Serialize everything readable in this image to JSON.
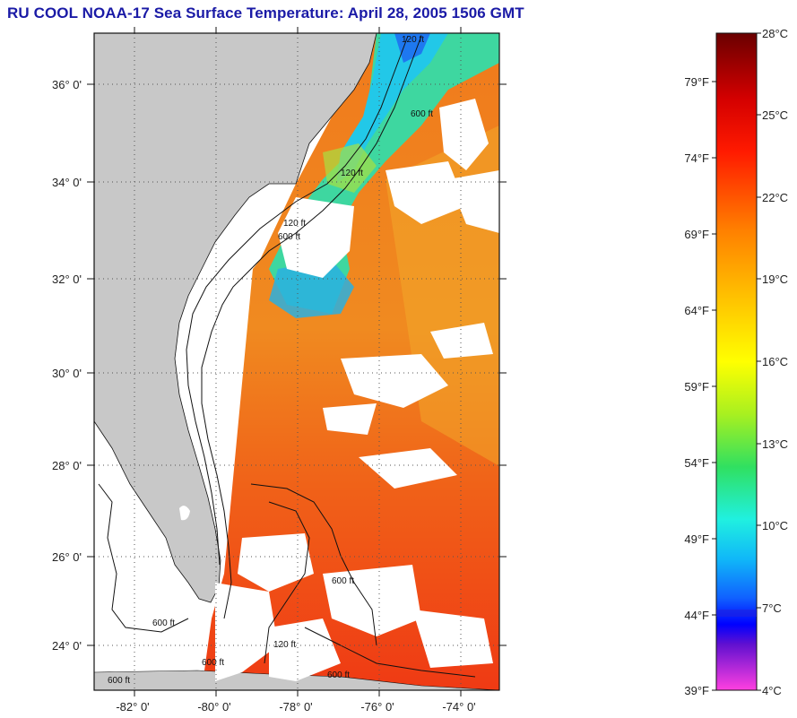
{
  "title": "RU COOL  NOAA-17  Sea Surface Temperature:  April 28, 2005 1506 GMT",
  "map": {
    "lat_labels": [
      "36° 0'",
      "34° 0'",
      "32° 0'",
      "30° 0'",
      "28° 0'",
      "26° 0'",
      "24° 0'"
    ],
    "lon_labels": [
      "-82° 0'",
      "-80° 0'",
      "-78° 0'",
      "-76° 0'",
      "-74° 0'"
    ],
    "contour_labels": [
      "120 ft",
      "600 ft",
      "120 ft",
      "600 ft",
      "120 ft",
      "600 ft",
      "600 ft",
      "120 ft",
      "600 ft",
      "600 ft",
      "600 ft"
    ]
  },
  "colorbar": {
    "celsius": [
      "28°C",
      "25°C",
      "22°C",
      "19°C",
      "16°C",
      "13°C",
      "10°C",
      "7°C",
      "4°C"
    ],
    "fahrenheit": [
      "79°F",
      "74°F",
      "69°F",
      "64°F",
      "59°F",
      "54°F",
      "49°F",
      "44°F",
      "39°F"
    ]
  },
  "colors": {
    "title": "#1a1aa6",
    "land": "#c8c8c8",
    "warm_water": "#f06a1a",
    "cloud": "#ffffff"
  }
}
